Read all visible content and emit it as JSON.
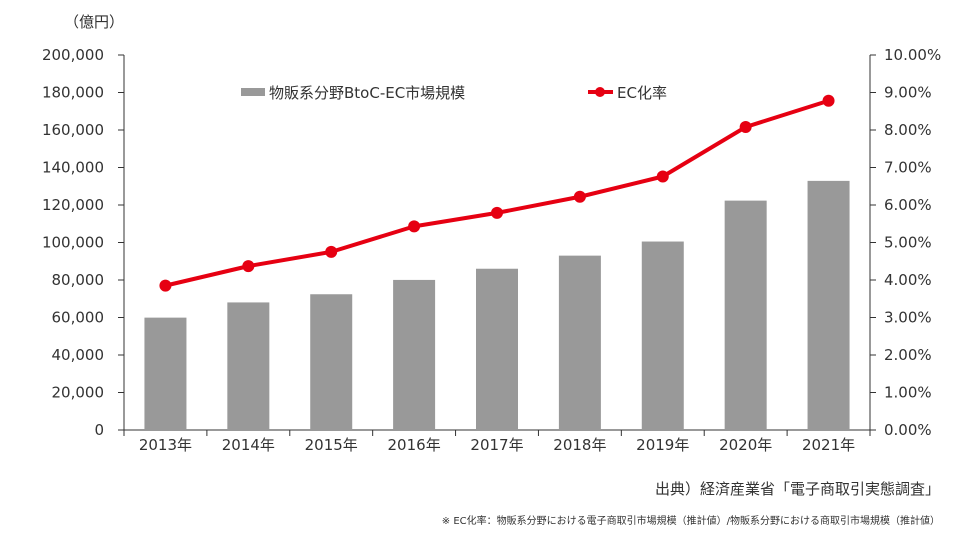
{
  "chart_data": {
    "type": "bar+line",
    "y_unit_label": "（億円）",
    "categories": [
      "2013年",
      "2014年",
      "2015年",
      "2016年",
      "2017年",
      "2018年",
      "2019年",
      "2020年",
      "2021年"
    ],
    "series": [
      {
        "name": "物販系分野BtoC-EC市場規模",
        "type": "bar",
        "axis": "left",
        "color": "#999999",
        "values": [
          59931,
          68043,
          72398,
          80043,
          86008,
          92992,
          100515,
          122333,
          132865
        ]
      },
      {
        "name": "EC化率",
        "type": "line",
        "axis": "right",
        "color": "#e60012",
        "values": [
          3.85,
          4.37,
          4.75,
          5.43,
          5.79,
          6.22,
          6.76,
          8.08,
          8.78
        ]
      }
    ],
    "left_axis": {
      "range": [
        0,
        200000
      ],
      "ticks": [
        "0",
        "20,000",
        "40,000",
        "60,000",
        "80,000",
        "100,000",
        "120,000",
        "140,000",
        "160,000",
        "180,000",
        "200,000"
      ]
    },
    "right_axis": {
      "range": [
        0,
        10
      ],
      "ticks": [
        "0.00%",
        "1.00%",
        "2.00%",
        "3.00%",
        "4.00%",
        "5.00%",
        "6.00%",
        "7.00%",
        "8.00%",
        "9.00%",
        "10.00%"
      ]
    },
    "grid": false,
    "legend_position": "top"
  },
  "source_text": "出典）経済産業省「電子商取引実態調査」",
  "footnote_text": "※ EC化率：物販系分野における電子商取引市場規模（推計値）/物販系分野における商取引市場規模（推計値）"
}
